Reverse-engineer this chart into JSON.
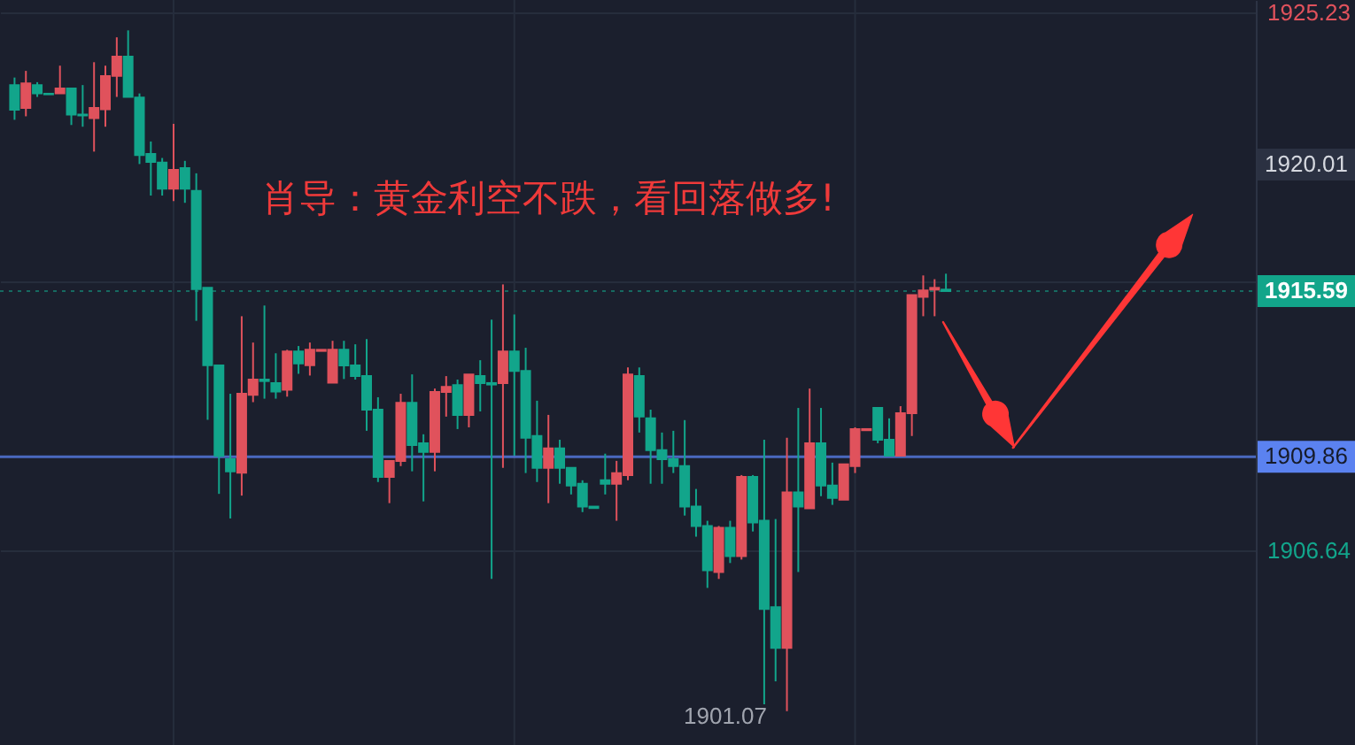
{
  "chart_data": {
    "type": "candlestick",
    "categories": [
      null,
      null,
      null,
      null,
      null,
      null,
      null,
      null,
      null,
      null,
      null,
      null,
      null,
      null,
      null,
      null,
      null,
      null,
      null,
      null,
      null,
      null,
      null,
      null,
      null,
      null,
      null,
      null,
      null,
      null,
      null,
      null,
      null,
      null,
      null,
      null,
      null,
      null,
      null,
      null,
      null,
      null,
      null,
      null,
      null,
      null,
      null,
      null,
      null,
      null,
      null,
      null,
      null,
      null,
      null,
      null,
      null,
      null,
      null,
      null,
      null,
      null,
      null,
      null,
      null,
      null,
      null,
      null,
      null,
      null,
      null,
      null,
      null,
      null,
      null,
      null,
      null,
      null,
      null,
      null,
      null,
      null,
      null,
      null,
      null,
      null,
      null,
      null,
      null,
      null,
      null,
      null,
      null,
      null,
      null,
      null,
      null,
      null,
      null,
      null,
      null,
      null,
      null,
      null,
      null,
      null,
      null,
      null,
      null
    ],
    "ohlc": [
      [
        1922.71,
        1922.97,
        1921.51,
        1921.86
      ],
      [
        1921.92,
        1923.2,
        1921.63,
        1922.77
      ],
      [
        1922.71,
        1922.81,
        1922.3,
        1922.42
      ],
      [
        1922.41,
        1922.41,
        1922.39,
        1922.39
      ],
      [
        1922.42,
        1923.38,
        1922.41,
        1922.59
      ],
      [
        1922.59,
        1922.59,
        1921.33,
        1921.69
      ],
      [
        1921.69,
        1922.71,
        1921.27,
        1921.66
      ],
      [
        1921.57,
        1923.5,
        1920.41,
        1921.92
      ],
      [
        1921.87,
        1923.38,
        1921.27,
        1923.02
      ],
      [
        1923.03,
        1924.36,
        1922.3,
        1923.69
      ],
      [
        1923.69,
        1924.6,
        1922.3,
        1922.3
      ],
      [
        1922.28,
        1922.42,
        1919.98,
        1920.29
      ],
      [
        1920.33,
        1920.76,
        1918.89,
        1920.05
      ],
      [
        1920.03,
        1920.19,
        1918.89,
        1919.13
      ],
      [
        1919.13,
        1921.37,
        1918.7,
        1919.78
      ],
      [
        1919.84,
        1920.09,
        1918.64,
        1919.13
      ],
      [
        1919.05,
        1919.66,
        1914.56,
        1915.66
      ],
      [
        1915.7,
        1915.7,
        1911.14,
        1913.03
      ],
      [
        1913.02,
        1913.02,
        1908.58,
        1909.89
      ],
      [
        1909.78,
        1912.04,
        1907.73,
        1909.36
      ],
      [
        1909.31,
        1914.72,
        1908.52,
        1912.04
      ],
      [
        1912.0,
        1913.81,
        1911.75,
        1912.53
      ],
      [
        1912.53,
        1915.09,
        1911.87,
        1912.48
      ],
      [
        1912.41,
        1913.44,
        1911.87,
        1912.12
      ],
      [
        1912.18,
        1913.56,
        1911.94,
        1913.5
      ],
      [
        1913.5,
        1913.69,
        1912.73,
        1913.09
      ],
      [
        1913.03,
        1913.81,
        1912.67,
        1913.56
      ],
      [
        1913.52,
        1913.56,
        1913.52,
        1913.56
      ],
      [
        1912.42,
        1913.87,
        1912.42,
        1913.56
      ],
      [
        1913.56,
        1913.87,
        1912.55,
        1913.02
      ],
      [
        1913.02,
        1913.75,
        1912.53,
        1912.65
      ],
      [
        1912.65,
        1913.93,
        1910.76,
        1911.49
      ],
      [
        1911.49,
        1911.92,
        1908.99,
        1909.17
      ],
      [
        1909.17,
        1909.72,
        1908.26,
        1909.72
      ],
      [
        1909.72,
        1912.04,
        1909.54,
        1911.73
      ],
      [
        1911.73,
        1912.71,
        1909.36,
        1910.27
      ],
      [
        1910.33,
        1910.64,
        1908.32,
        1910.03
      ],
      [
        1910.03,
        1912.22,
        1909.36,
        1912.1
      ],
      [
        1912.1,
        1912.65,
        1911.25,
        1912.28
      ],
      [
        1912.34,
        1912.53,
        1910.82,
        1911.31
      ],
      [
        1911.31,
        1912.71,
        1910.88,
        1912.71
      ],
      [
        1912.65,
        1913.2,
        1911.43,
        1912.41
      ],
      [
        1912.41,
        1914.6,
        1905.64,
        1912.36
      ],
      [
        1912.41,
        1915.82,
        1909.48,
        1913.5
      ],
      [
        1913.5,
        1914.78,
        1909.9,
        1912.83
      ],
      [
        1912.83,
        1913.63,
        1909.3,
        1910.52
      ],
      [
        1910.58,
        1911.8,
        1908.99,
        1909.48
      ],
      [
        1909.48,
        1911.31,
        1908.26,
        1910.15
      ],
      [
        1910.15,
        1910.45,
        1908.93,
        1909.48
      ],
      [
        1909.48,
        1909.48,
        1908.56,
        1908.87
      ],
      [
        1908.93,
        1909.05,
        1907.95,
        1908.14
      ],
      [
        1908.14,
        1908.14,
        1908.09,
        1908.09
      ],
      [
        1909.05,
        1909.97,
        1908.56,
        1908.93
      ],
      [
        1908.93,
        1909.72,
        1907.65,
        1909.3
      ],
      [
        1909.23,
        1912.95,
        1909.05,
        1912.71
      ],
      [
        1912.65,
        1912.95,
        1910.7,
        1911.25
      ],
      [
        1911.19,
        1911.49,
        1908.93,
        1910.09
      ],
      [
        1910.09,
        1910.7,
        1908.93,
        1909.78
      ],
      [
        1909.78,
        1910.76,
        1909.3,
        1909.54
      ],
      [
        1909.54,
        1911.13,
        1907.83,
        1908.14
      ],
      [
        1908.14,
        1908.75,
        1907.1,
        1907.47
      ],
      [
        1907.47,
        1907.65,
        1905.33,
        1905.94
      ],
      [
        1905.88,
        1907.47,
        1905.64,
        1907.41
      ],
      [
        1907.41,
        1907.65,
        1906.19,
        1906.43
      ],
      [
        1906.43,
        1909.23,
        1906.31,
        1909.17
      ],
      [
        1909.17,
        1909.23,
        1907.28,
        1907.59
      ],
      [
        1907.65,
        1910.45,
        1901.31,
        1904.6
      ],
      [
        1904.66,
        1907.71,
        1902.1,
        1903.26
      ],
      [
        1903.26,
        1910.52,
        1901.07,
        1908.63
      ],
      [
        1908.63,
        1911.55,
        1905.88,
        1908.14
      ],
      [
        1908.08,
        1912.22,
        1908.08,
        1910.33
      ],
      [
        1910.33,
        1911.55,
        1908.5,
        1908.87
      ],
      [
        1908.87,
        1909.66,
        1908.2,
        1908.44
      ],
      [
        1908.38,
        1909.6,
        1908.38,
        1909.6
      ],
      [
        1909.54,
        1910.88,
        1909.3,
        1910.82
      ],
      [
        1910.78,
        1910.82,
        1910.78,
        1910.82
      ],
      [
        1911.55,
        1911.55,
        1910.33,
        1910.45
      ],
      [
        1910.45,
        1911.19,
        1909.9,
        1909.9
      ],
      [
        1909.9,
        1911.61,
        1909.9,
        1911.37
      ],
      [
        1911.37,
        1915.45,
        1910.58,
        1915.45
      ],
      [
        1915.39,
        1916.13,
        1914.72,
        1915.61
      ],
      [
        1915.64,
        1916.0,
        1914.72,
        1915.7
      ],
      [
        1915.64,
        1916.19,
        1915.59,
        1915.59
      ],
      null,
      null,
      null,
      null,
      null,
      null,
      null,
      null,
      null,
      null,
      null,
      null,
      null,
      null,
      null,
      null,
      null,
      null,
      null,
      null,
      null,
      null,
      null,
      null,
      null,
      null
    ],
    "colors": [
      "#12a58b",
      "#e0525c",
      "#12a58b",
      "#12a58b",
      "#e0525c",
      "#12a58b",
      "#12a58b",
      "#e0525c",
      "#e0525c",
      "#e0525c",
      "#12a58b",
      "#12a58b",
      "#12a58b",
      "#12a58b",
      "#e0525c",
      "#12a58b",
      "#12a58b",
      "#12a58b",
      "#12a58b",
      "#12a58b",
      "#e0525c",
      "#e0525c",
      "#12a58b",
      "#12a58b",
      "#e0525c",
      "#12a58b",
      "#e0525c",
      "#e0525c",
      "#e0525c",
      "#12a58b",
      "#12a58b",
      "#12a58b",
      "#12a58b",
      "#e0525c",
      "#e0525c",
      "#12a58b",
      "#12a58b",
      "#e0525c",
      "#e0525c",
      "#12a58b",
      "#e0525c",
      "#12a58b",
      "#12a58b",
      "#e0525c",
      "#12a58b",
      "#12a58b",
      "#12a58b",
      "#e0525c",
      "#12a58b",
      "#12a58b",
      "#12a58b",
      "#12a58b",
      "#12a58b",
      "#e0525c",
      "#e0525c",
      "#12a58b",
      "#12a58b",
      "#12a58b",
      "#12a58b",
      "#12a58b",
      "#12a58b",
      "#12a58b",
      "#e0525c",
      "#12a58b",
      "#e0525c",
      "#12a58b",
      "#12a58b",
      "#12a58b",
      "#e0525c",
      "#12a58b",
      "#e0525c",
      "#12a58b",
      "#12a58b",
      "#e0525c",
      "#e0525c",
      "#e0525c",
      "#12a58b",
      "#12a58b",
      "#e0525c",
      "#e0525c",
      "#e0525c",
      "#e0525c",
      "#12a58b",
      null,
      null,
      null,
      null,
      null,
      null,
      null,
      null,
      null,
      null,
      null,
      null,
      null,
      null,
      null,
      null,
      null,
      null,
      null,
      null,
      null,
      null,
      null,
      null,
      null,
      null
    ],
    "ylim": [
      1899.9,
      1925.65
    ],
    "yticks": [
      1906.64,
      {
        "value": 1915.94,
        "label": null
      },
      1925.23
    ],
    "tick_labels": "y",
    "grid": true,
    "ref_lines": [
      {
        "axis": "y",
        "value": 1915.59,
        "label": "1915.59",
        "color": "#12a58a",
        "line_style": "dotted"
      },
      {
        "axis": "y",
        "value": 1909.86,
        "label": "1909.86",
        "color": "#5b82f0",
        "line_style": "solid"
      }
    ],
    "annotations": [
      "1920.01",
      "肖导：黄金利空不跌，看回落做多!",
      "1901.07"
    ]
  }
}
